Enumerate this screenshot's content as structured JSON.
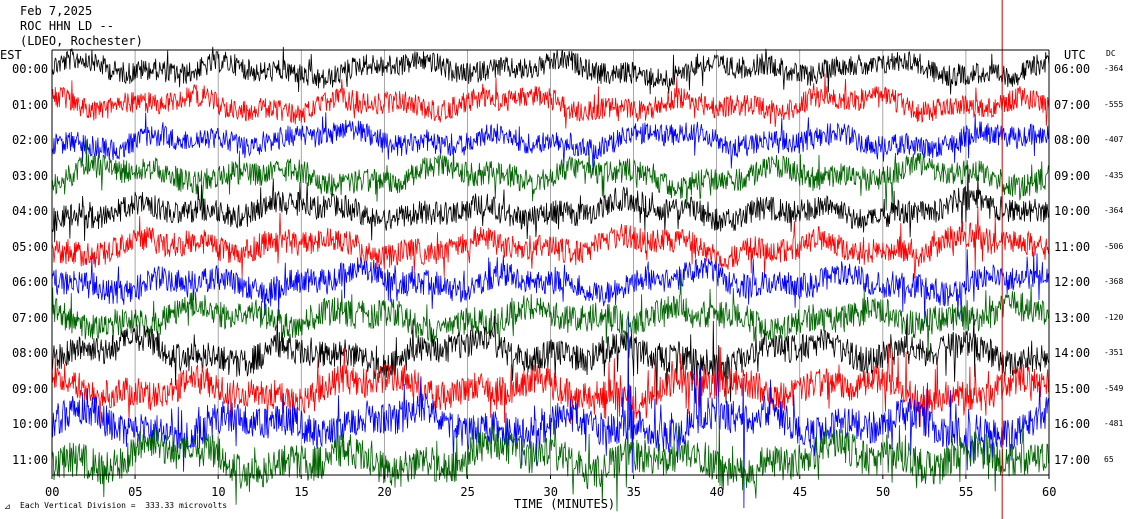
{
  "header": {
    "date": "Feb 7,2025",
    "station": "ROC HHN LD --",
    "network": "(LDEO, Rochester)"
  },
  "left_axis_title": "EST",
  "right_axis_title": "UTC",
  "dc_title": "DC",
  "footer": {
    "scale_note": "Each Vertical Division =  333.33 microvolts"
  },
  "colors": {
    "black": "#000000",
    "red": "#ff0000",
    "blue": "#0000ff",
    "green": "#006400",
    "event_marker": "#cc0000",
    "grid": "#808080"
  },
  "chart_data": {
    "type": "line",
    "subtype": "helicorder",
    "xlabel": "TIME (MINUTES)",
    "xlim": [
      0,
      60
    ],
    "x_ticks": [
      "00",
      "05",
      "10",
      "15",
      "20",
      "25",
      "30",
      "35",
      "40",
      "45",
      "50",
      "55",
      "60"
    ],
    "event_marker_minute": 56.4,
    "series": [
      {
        "est": "00:00",
        "utc": "06:00",
        "dc": "-364",
        "color": "black",
        "amplitude": 1.0
      },
      {
        "est": "01:00",
        "utc": "07:00",
        "dc": "-555",
        "color": "red",
        "amplitude": 1.0
      },
      {
        "est": "02:00",
        "utc": "08:00",
        "dc": "-407",
        "color": "blue",
        "amplitude": 1.0
      },
      {
        "est": "03:00",
        "utc": "09:00",
        "dc": "-435",
        "color": "green",
        "amplitude": 1.1
      },
      {
        "est": "04:00",
        "utc": "10:00",
        "dc": "-364",
        "color": "black",
        "amplitude": 1.1
      },
      {
        "est": "05:00",
        "utc": "11:00",
        "dc": "-506",
        "color": "red",
        "amplitude": 1.15
      },
      {
        "est": "06:00",
        "utc": "12:00",
        "dc": "-368",
        "color": "blue",
        "amplitude": 1.15
      },
      {
        "est": "07:00",
        "utc": "13:00",
        "dc": "-120",
        "color": "green",
        "amplitude": 1.25
      },
      {
        "est": "08:00",
        "utc": "14:00",
        "dc": "-351",
        "color": "black",
        "amplitude": 1.3
      },
      {
        "est": "09:00",
        "utc": "15:00",
        "dc": "-549",
        "color": "red",
        "amplitude": 1.35
      },
      {
        "est": "10:00",
        "utc": "16:00",
        "dc": "-481",
        "color": "blue",
        "amplitude": 1.5
      },
      {
        "est": "11:00",
        "utc": "17:00",
        "dc": "65",
        "color": "green",
        "amplitude": 1.6
      }
    ]
  }
}
